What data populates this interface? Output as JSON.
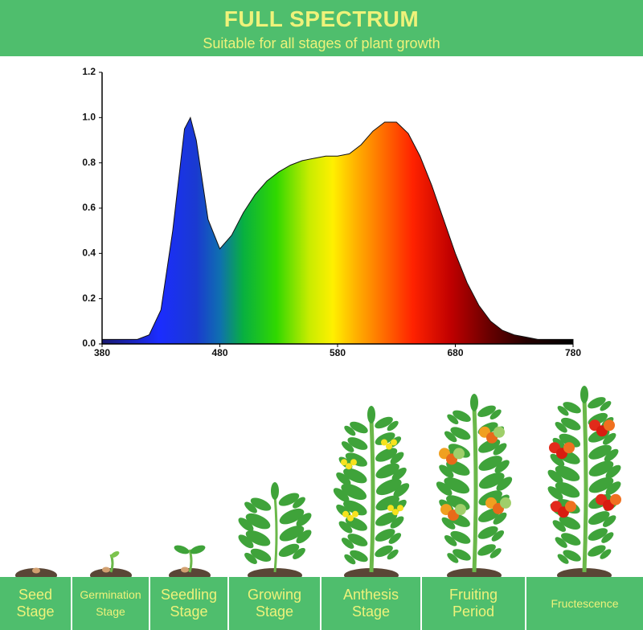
{
  "chart_data": {
    "type": "area",
    "title": "FULL SPECTRUM",
    "subtitle": "Suitable for all stages of plant growth",
    "x": [
      380,
      390,
      400,
      410,
      420,
      430,
      440,
      450,
      455,
      460,
      470,
      480,
      490,
      500,
      510,
      520,
      530,
      540,
      550,
      560,
      570,
      580,
      590,
      600,
      610,
      620,
      630,
      640,
      650,
      660,
      670,
      680,
      690,
      700,
      710,
      720,
      730,
      740,
      750,
      760,
      770,
      780
    ],
    "values": [
      0.02,
      0.02,
      0.02,
      0.02,
      0.04,
      0.15,
      0.5,
      0.95,
      1.0,
      0.9,
      0.55,
      0.42,
      0.48,
      0.58,
      0.66,
      0.72,
      0.76,
      0.79,
      0.81,
      0.82,
      0.83,
      0.83,
      0.84,
      0.88,
      0.94,
      0.98,
      0.98,
      0.93,
      0.83,
      0.7,
      0.55,
      0.4,
      0.27,
      0.17,
      0.1,
      0.06,
      0.04,
      0.03,
      0.02,
      0.02,
      0.02,
      0.02
    ],
    "xlim": [
      380,
      780
    ],
    "ylim": [
      0,
      1.2
    ],
    "xticks": [
      380,
      480,
      580,
      680,
      780
    ],
    "yticks": [
      {
        "value": 0,
        "label": "0.0"
      },
      {
        "value": 0.2,
        "label": "0.2"
      },
      {
        "value": 0.4,
        "label": "0.4"
      },
      {
        "value": 0.6,
        "label": "0.6"
      },
      {
        "value": 0.8,
        "label": "0.8"
      },
      {
        "value": 1.0,
        "label": "1.0"
      },
      {
        "value": 1.2,
        "label": "1.2"
      }
    ],
    "grid": false
  },
  "stages": [
    {
      "lines": [
        "Seed",
        "Stage"
      ]
    },
    {
      "lines": [
        "Germination",
        "Stage"
      ]
    },
    {
      "lines": [
        "Seedling",
        "Stage"
      ]
    },
    {
      "lines": [
        "Growing",
        "Stage"
      ]
    },
    {
      "lines": [
        "Anthesis",
        "Stage"
      ]
    },
    {
      "lines": [
        "Fruiting",
        "Period"
      ]
    },
    {
      "lines": [
        "Fructescence"
      ]
    }
  ]
}
